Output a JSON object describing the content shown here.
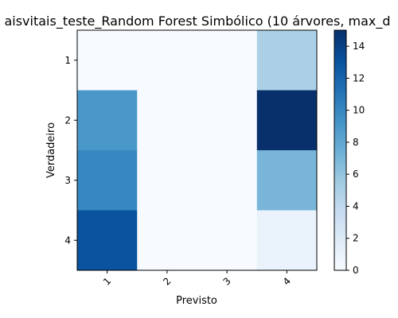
{
  "chart_data": {
    "type": "heatmap",
    "title": "aisvitais_teste_Random Forest Simbólico (10 árvores, max_d",
    "xlabel": "Previsto",
    "ylabel": "Verdadeiro",
    "x_categories": [
      "1",
      "2",
      "3",
      "4"
    ],
    "y_categories": [
      "1",
      "2",
      "3",
      "4"
    ],
    "values": [
      [
        0,
        0,
        0,
        5
      ],
      [
        9,
        0,
        0,
        15
      ],
      [
        10,
        0,
        0,
        7
      ],
      [
        13,
        0,
        0,
        1
      ]
    ],
    "colorbar": {
      "min": 0,
      "max": 15,
      "ticks": [
        0,
        2,
        4,
        6,
        8,
        10,
        12,
        14
      ],
      "colormap": "Blues"
    },
    "grid": false
  }
}
